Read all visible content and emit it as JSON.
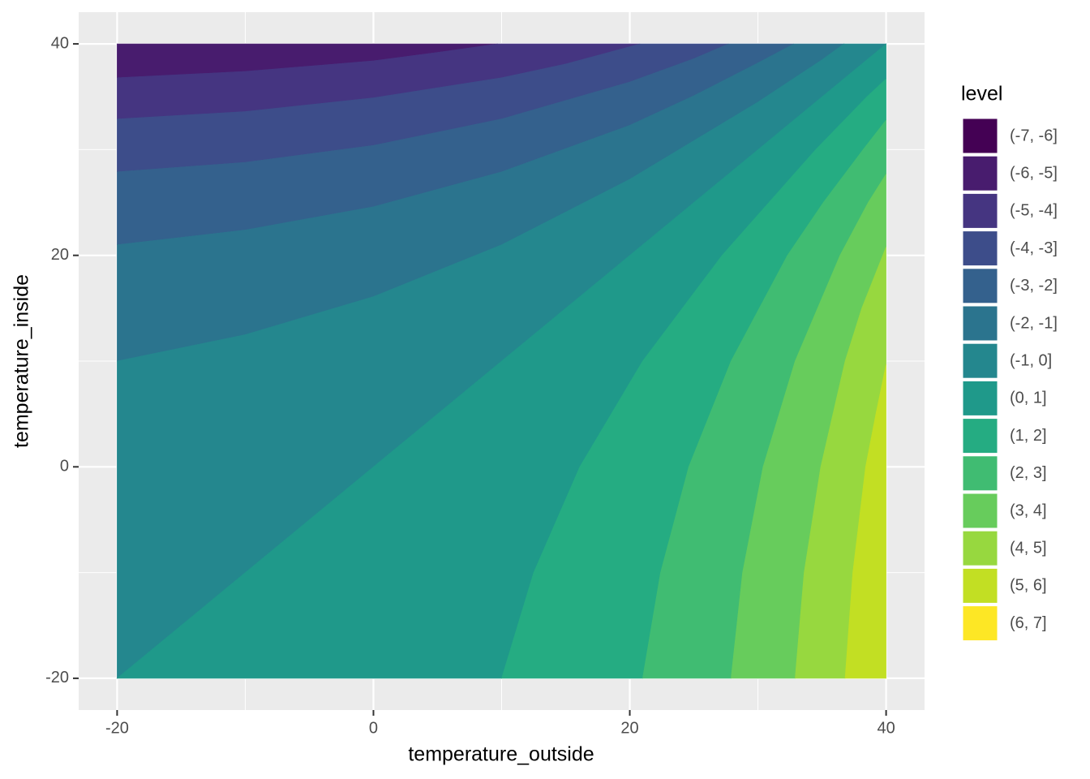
{
  "chart_data": {
    "type": "filled_contour",
    "x_label": "temperature_outside",
    "y_label": "temperature_inside",
    "legend_title": "level",
    "legend_position": "right",
    "grid": true,
    "xlim": [
      -23,
      43
    ],
    "ylim": [
      -23,
      43
    ],
    "xticks": [
      -20,
      0,
      20,
      40
    ],
    "yticks": [
      -20,
      0,
      20,
      40
    ],
    "series": [
      {
        "name": "(-7, -6]",
        "color": "#440154",
        "x": [],
        "y": []
      },
      {
        "name": "(-6, -5]",
        "color": "#481C6E",
        "x": [
          -20,
          -10,
          0,
          5,
          9.7,
          -20
        ],
        "y": [
          36.8,
          37.4,
          38.4,
          39.2,
          40,
          40
        ]
      },
      {
        "name": "(-5, -4]",
        "color": "#453581",
        "x": [
          -20,
          -10,
          0,
          10,
          15,
          20.8,
          9.7,
          5,
          0,
          -10,
          -20
        ],
        "y": [
          32.9,
          33.6,
          34.9,
          36.8,
          38.1,
          40,
          40,
          39.2,
          38.4,
          37.4,
          36.8
        ]
      },
      {
        "name": "(-4, -3]",
        "color": "#3D4D8A",
        "x": [
          -20,
          -10,
          0,
          10,
          20,
          25,
          27.7,
          20.8,
          15,
          10,
          0,
          -10,
          -20
        ],
        "y": [
          27.9,
          28.8,
          30.4,
          32.9,
          36.4,
          38.6,
          40,
          40,
          38.1,
          36.8,
          34.9,
          33.6,
          32.9
        ]
      },
      {
        "name": "(-3, -2]",
        "color": "#34618D",
        "x": [
          -20,
          -10,
          0,
          10,
          20,
          25,
          30,
          32.8,
          27.7,
          25,
          20,
          10,
          0,
          -10,
          -20
        ],
        "y": [
          21,
          22.4,
          24.6,
          27.9,
          32.3,
          35.1,
          38.2,
          40,
          40,
          38.6,
          36.4,
          32.9,
          30.4,
          28.8,
          27.9
        ]
      },
      {
        "name": "(-2, -1]",
        "color": "#2B748E",
        "x": [
          -20,
          -10,
          0,
          10,
          20,
          30,
          35,
          36.7,
          32.8,
          30,
          25,
          20,
          10,
          0,
          -10,
          -20
        ],
        "y": [
          10,
          12.5,
          16.1,
          21,
          27.2,
          34.5,
          38.5,
          40,
          40,
          38.2,
          35.1,
          32.3,
          27.9,
          24.6,
          22.4,
          21
        ]
      },
      {
        "name": "(-1, 0]",
        "color": "#24878E",
        "x": [
          -20,
          40,
          36.7,
          35,
          30,
          20,
          10,
          0,
          -10,
          -20
        ],
        "y": [
          -20,
          40,
          40,
          38.5,
          34.5,
          27.2,
          21,
          16.1,
          12.5,
          10
        ]
      },
      {
        "name": "(0, 1]",
        "color": "#1F998A",
        "x": [
          -20,
          40,
          40,
          38.5,
          34.5,
          27.2,
          21,
          16.1,
          12.5,
          10
        ],
        "y": [
          -20,
          40,
          36.7,
          35,
          30,
          20,
          10,
          0,
          -10,
          -20
        ]
      },
      {
        "name": "(1, 2]",
        "color": "#25AC82",
        "x": [
          10,
          12.5,
          16.1,
          21,
          27.2,
          34.5,
          38.5,
          40,
          40,
          38.2,
          35.1,
          32.3,
          27.9,
          24.6,
          22.4,
          21
        ],
        "y": [
          -20,
          -10,
          0,
          10,
          20,
          30,
          35,
          36.7,
          32.8,
          30,
          25,
          20,
          10,
          0,
          -10,
          -20
        ]
      },
      {
        "name": "(2, 3]",
        "color": "#40BC72",
        "x": [
          21,
          22.4,
          24.6,
          27.9,
          32.3,
          35.1,
          38.2,
          40,
          40,
          38.6,
          36.4,
          32.9,
          30.4,
          28.8,
          27.9
        ],
        "y": [
          -20,
          -10,
          0,
          10,
          20,
          25,
          30,
          32.8,
          27.7,
          25,
          20,
          10,
          0,
          -10,
          -20
        ]
      },
      {
        "name": "(3, 4]",
        "color": "#67CC5C",
        "x": [
          27.9,
          28.8,
          30.4,
          32.9,
          36.4,
          38.6,
          40,
          40,
          38.1,
          36.8,
          34.9,
          33.6,
          32.9
        ],
        "y": [
          -20,
          -10,
          0,
          10,
          20,
          25,
          27.7,
          20.8,
          15,
          10,
          0,
          -10,
          -20
        ]
      },
      {
        "name": "(4, 5]",
        "color": "#97D83F",
        "x": [
          32.9,
          33.6,
          34.9,
          36.8,
          38.1,
          40,
          40,
          39.2,
          38.4,
          37.4,
          36.8
        ],
        "y": [
          -20,
          -10,
          0,
          10,
          15,
          20.8,
          9.7,
          5,
          0,
          -10,
          -20
        ]
      },
      {
        "name": "(5, 6]",
        "color": "#C2DF23",
        "x": [
          36.8,
          37.4,
          38.4,
          39.2,
          40,
          40
        ],
        "y": [
          -20,
          -10,
          0,
          5,
          9.7,
          -20
        ]
      },
      {
        "name": "(6, 7]",
        "color": "#FDE725",
        "x": [],
        "y": []
      }
    ]
  }
}
